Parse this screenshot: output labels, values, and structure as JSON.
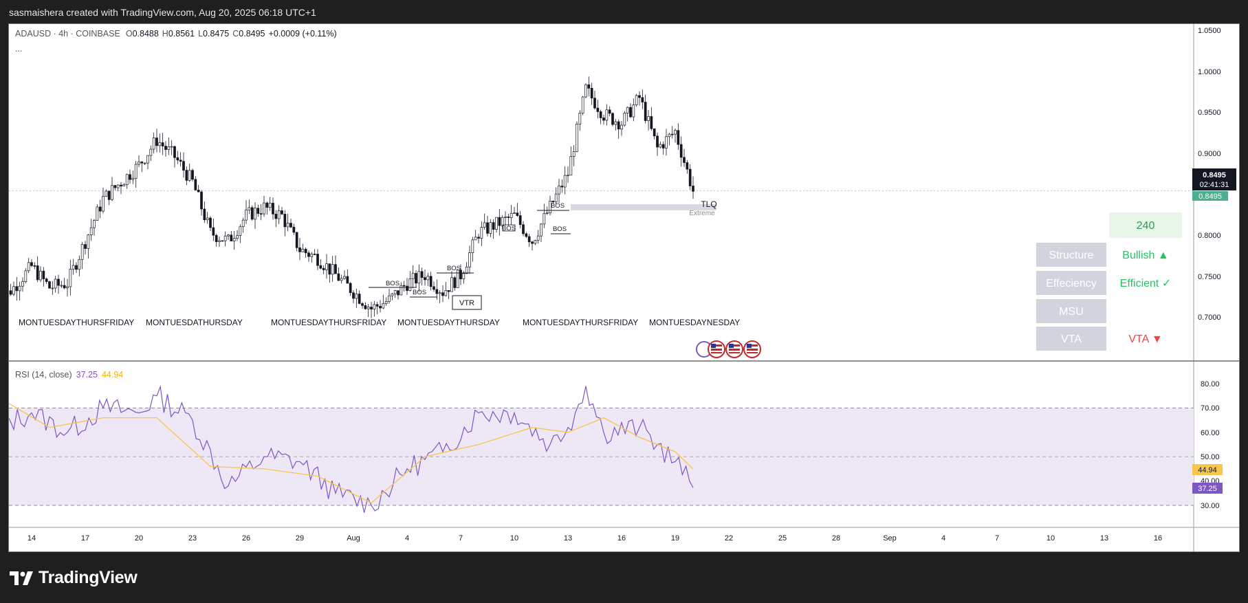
{
  "header": {
    "attribution": "sasmaishera created with TradingView.com, Aug 20, 2025 06:18 UTC+1"
  },
  "footer": {
    "brand": "TradingView"
  },
  "legend": {
    "symbol": "ADAUSD · 4h · COINBASE",
    "o_label": "O",
    "o_value": "0.8488",
    "h_label": "H",
    "h_value": "0.8561",
    "l_label": "L",
    "l_value": "0.8475",
    "c_label": "C",
    "c_value": "0.8495",
    "change": "+0.0009 (+0.11%)",
    "more": "..."
  },
  "rsi_legend": {
    "name": "RSI (14, close)",
    "rsi_value": "37.25",
    "ma_value": "44.94"
  },
  "price_axis": {
    "ticks": [
      "1.0500",
      "1.0000",
      "0.9500",
      "0.9000",
      "0.8000",
      "0.7500",
      "0.7000"
    ],
    "last_price": "0.8495",
    "countdown": "02:41:31",
    "last_price_green": "0.8495"
  },
  "rsi_axis": {
    "ticks": [
      "80.00",
      "70.00",
      "60.00",
      "50.00",
      "40.00",
      "30.00"
    ],
    "rsi_tag": "37.25",
    "ma_tag": "44.94"
  },
  "time_axis": {
    "labels": [
      "14",
      "17",
      "20",
      "23",
      "26",
      "29",
      "Aug",
      "4",
      "7",
      "10",
      "13",
      "16",
      "19",
      "22",
      "25",
      "28",
      "Sep",
      "4",
      "7",
      "10",
      "13",
      "16"
    ]
  },
  "smc_panel": {
    "timeframe": "240",
    "rows": [
      {
        "label": "Structure",
        "value": "Bullish ▲",
        "color": "#22c55e"
      },
      {
        "label": "Effeciency",
        "value": "Efficient ✓",
        "color": "#22c55e"
      },
      {
        "label": "MSU",
        "value": "",
        "color": "#22c55e"
      },
      {
        "label": "VTA",
        "value": "VTA ▼",
        "color": "#ef4444"
      }
    ]
  },
  "annotations": {
    "bos": "BOS",
    "vtr": "VTR",
    "tlq": "TLQ",
    "extreme": "Extreme",
    "day_labels": [
      "MONTUESDAYTHURSFRIDAY",
      "MONTUESDATHURSDAY",
      "MONTUESDAYTHURSFRIDAY",
      "MONTUESDAYTHURSDAY",
      "MONTUESDAYTHURSFRIDAY",
      "MONTUESDAYNESDAY"
    ]
  },
  "colors": {
    "up": "#089981",
    "down": "#131722",
    "rsi_line": "#7e57c2",
    "rsi_ma": "#f7c64a",
    "rsi_band": "#ede7f6",
    "panel_gray": "#d1d4dc",
    "last_price_tag": "#131722",
    "green_tag": "#4caf8e"
  },
  "chart_data": [
    {
      "type": "candlestick",
      "title": "ADAUSD · 4h · COINBASE",
      "x_axis": "date (Jul 12 – Sep 16, 2025)",
      "ylim": [
        0.68,
        1.06
      ],
      "grid": false,
      "close_path": {
        "dates": [
          "2025-07-12",
          "2025-07-13",
          "2025-07-14",
          "2025-07-15",
          "2025-07-16",
          "2025-07-17",
          "2025-07-18",
          "2025-07-19",
          "2025-07-20",
          "2025-07-21",
          "2025-07-22",
          "2025-07-23",
          "2025-07-24",
          "2025-07-25",
          "2025-07-26",
          "2025-07-27",
          "2025-07-28",
          "2025-07-29",
          "2025-07-30",
          "2025-07-31",
          "2025-08-01",
          "2025-08-02",
          "2025-08-03",
          "2025-08-04",
          "2025-08-05",
          "2025-08-06",
          "2025-08-07",
          "2025-08-08",
          "2025-08-09",
          "2025-08-10",
          "2025-08-11",
          "2025-08-12",
          "2025-08-13",
          "2025-08-14",
          "2025-08-15",
          "2025-08-16",
          "2025-08-17",
          "2025-08-18",
          "2025-08-19",
          "2025-08-20"
        ],
        "close": [
          0.715,
          0.735,
          0.76,
          0.735,
          0.74,
          0.79,
          0.84,
          0.86,
          0.88,
          0.91,
          0.89,
          0.86,
          0.8,
          0.79,
          0.82,
          0.83,
          0.82,
          0.78,
          0.77,
          0.75,
          0.73,
          0.71,
          0.72,
          0.74,
          0.75,
          0.73,
          0.75,
          0.8,
          0.81,
          0.82,
          0.79,
          0.83,
          0.87,
          0.97,
          0.94,
          0.93,
          0.96,
          0.9,
          0.92,
          0.8495
        ]
      },
      "last": {
        "open": 0.8488,
        "high": 0.8561,
        "low": 0.8475,
        "close": 0.8495,
        "change": 0.0009,
        "change_pct": 0.11
      }
    },
    {
      "type": "line",
      "title": "RSI (14, close)",
      "ylim": [
        25,
        85
      ],
      "bands": [
        30,
        50,
        70
      ],
      "series": [
        {
          "name": "RSI",
          "x": [
            "2025-07-12",
            "2025-07-14",
            "2025-07-16",
            "2025-07-18",
            "2025-07-20",
            "2025-07-21",
            "2025-07-23",
            "2025-07-25",
            "2025-07-27",
            "2025-07-29",
            "2025-07-31",
            "2025-08-02",
            "2025-08-04",
            "2025-08-06",
            "2025-08-08",
            "2025-08-10",
            "2025-08-12",
            "2025-08-13",
            "2025-08-14",
            "2025-08-15",
            "2025-08-17",
            "2025-08-18",
            "2025-08-19",
            "2025-08-20"
          ],
          "values": [
            62,
            68,
            60,
            70,
            68,
            75,
            65,
            38,
            50,
            48,
            35,
            30,
            45,
            52,
            68,
            68,
            55,
            62,
            79,
            60,
            62,
            55,
            48,
            37.25
          ]
        },
        {
          "name": "RSI MA",
          "x": [
            "2025-07-12",
            "2025-07-15",
            "2025-07-18",
            "2025-07-21",
            "2025-07-24",
            "2025-07-27",
            "2025-07-30",
            "2025-08-02",
            "2025-08-05",
            "2025-08-08",
            "2025-08-11",
            "2025-08-13",
            "2025-08-15",
            "2025-08-17",
            "2025-08-19",
            "2025-08-20"
          ],
          "values": [
            75,
            62,
            66,
            66,
            46,
            45,
            42,
            31,
            50,
            55,
            62,
            60,
            66,
            58,
            52,
            44.94
          ]
        }
      ],
      "last": {
        "rsi": 37.25,
        "ma": 44.94
      }
    }
  ]
}
